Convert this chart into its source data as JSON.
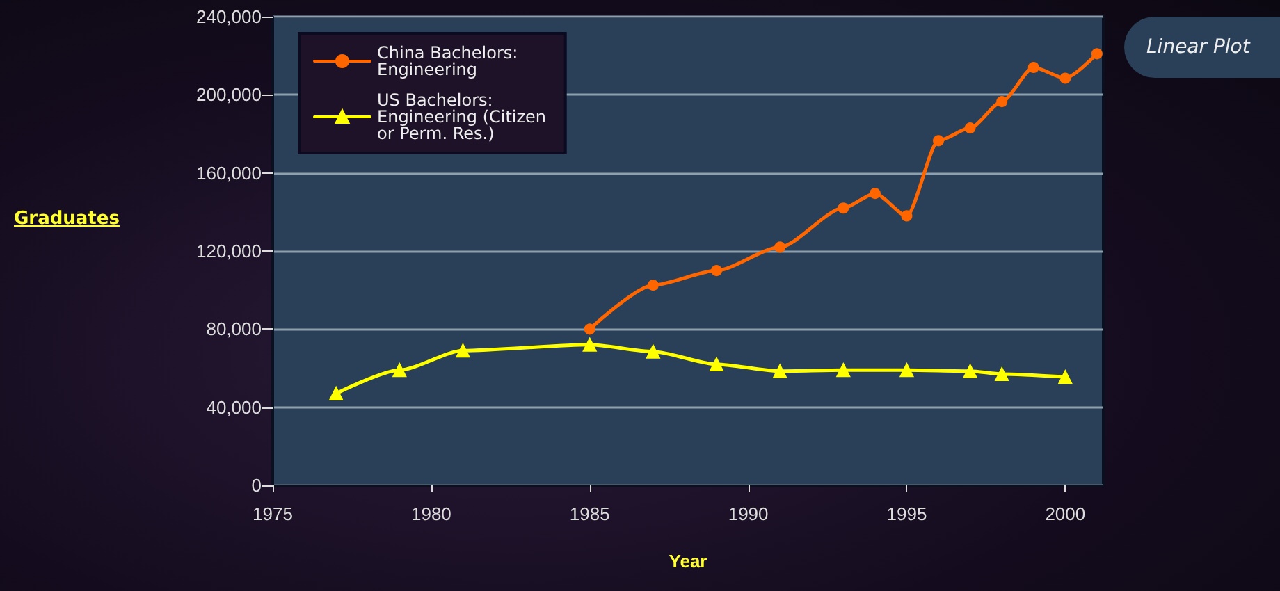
{
  "chart_data": {
    "type": "line",
    "xlabel": "Year",
    "ylabel": "Graduates",
    "annotations": [
      "Linear Plot"
    ],
    "xlim": [
      1975,
      2001.2
    ],
    "xticks": [
      1975,
      1980,
      1985,
      1990,
      1995,
      2000
    ],
    "ylim": [
      0,
      240000
    ],
    "yticks": [
      0,
      {
        "value": 40000,
        "label": "40,000"
      },
      {
        "value": 80000,
        "label": "80,000"
      },
      {
        "value": 120000,
        "label": "120,000"
      },
      {
        "value": 160000,
        "label": "160,000"
      },
      {
        "value": 200000,
        "label": "200,000"
      },
      {
        "value": 240000,
        "label": "240,000"
      }
    ],
    "grid": "y",
    "legend": "top left",
    "line_style": "solid",
    "series": [
      {
        "name": "China Bachelors: Engineering",
        "color": "#ff6600",
        "marker": "circle",
        "x": [
          1985,
          1987,
          1989,
          1991,
          1993,
          1994,
          1995,
          1996,
          1997,
          1998,
          1999,
          2000,
          2001
        ],
        "values": [
          80000,
          102500,
          110000,
          122000,
          142000,
          149500,
          138000,
          176500,
          183000,
          196500,
          214000,
          208500,
          221000
        ]
      },
      {
        "name": "US Bachelors: Engineering (Citizen or Perm. Res.)",
        "color": "#ffff00",
        "marker": "triangle",
        "x": [
          1977,
          1979,
          1981,
          1985,
          1987,
          1989,
          1991,
          1993,
          1995,
          1997,
          1998,
          2000
        ],
        "values": [
          47000,
          59000,
          69000,
          72000,
          68500,
          62000,
          58500,
          59000,
          59000,
          58500,
          57000,
          55500
        ]
      }
    ]
  }
}
